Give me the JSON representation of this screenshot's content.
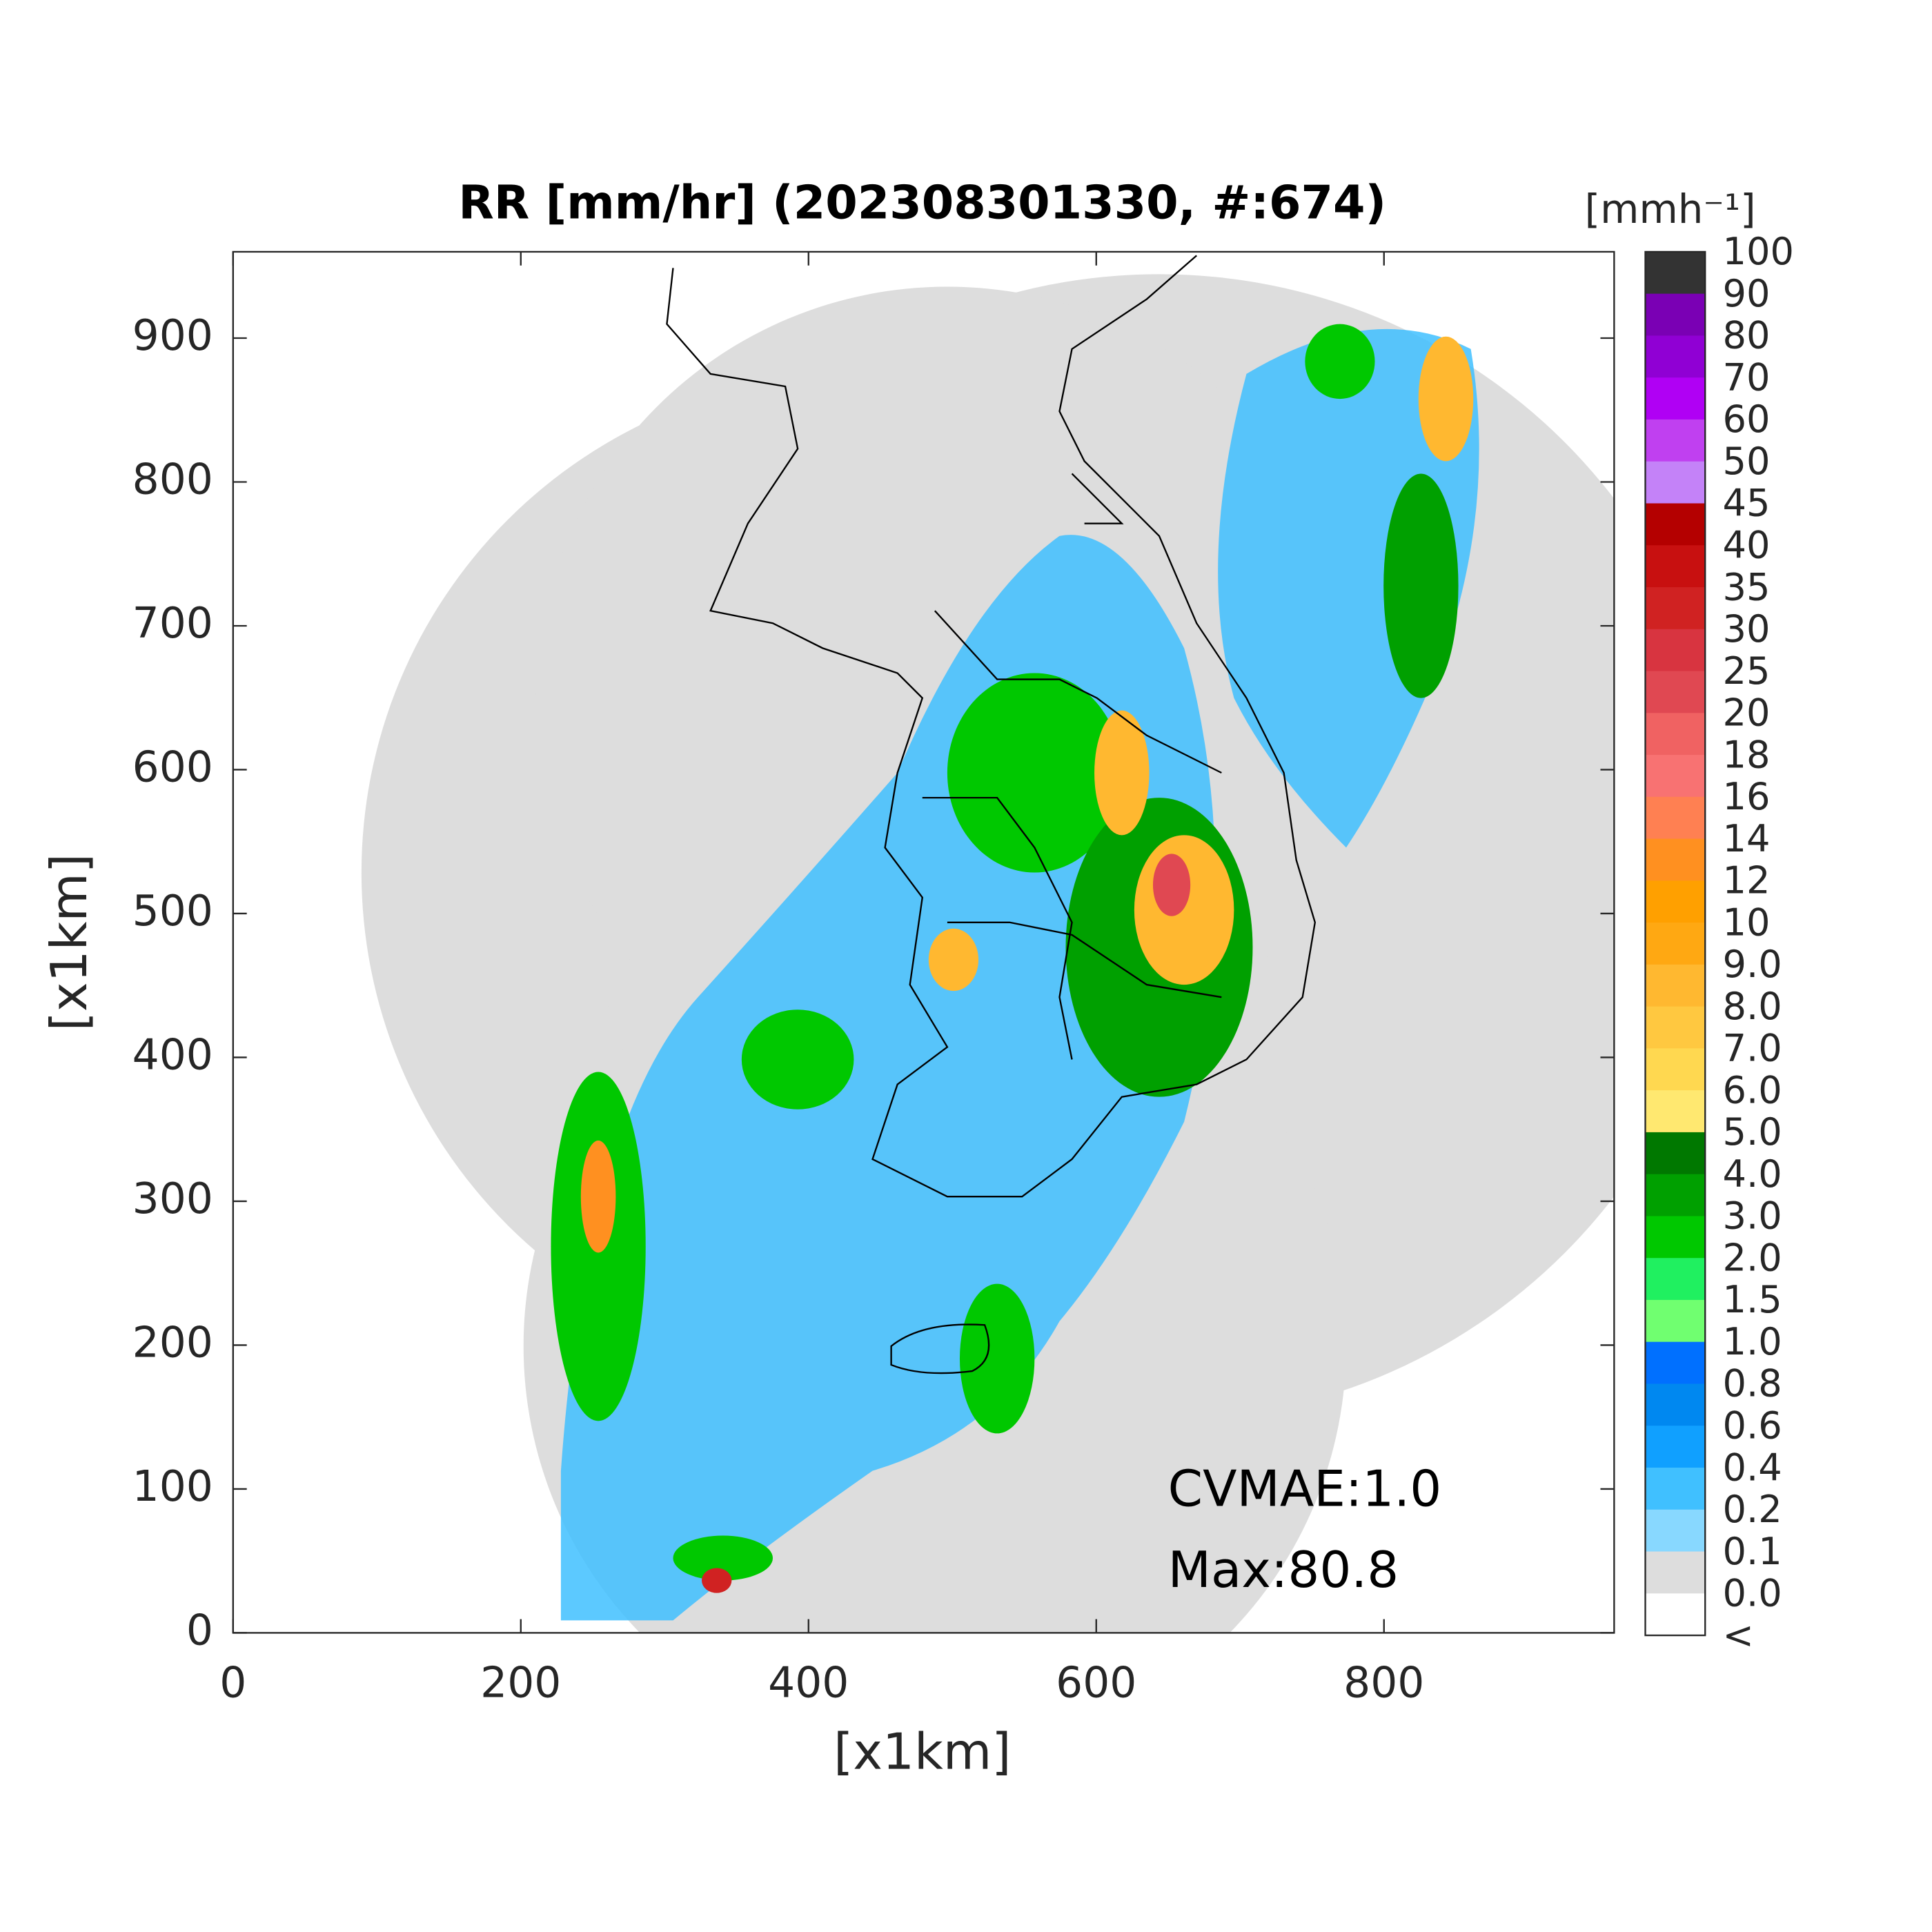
{
  "chart_data": {
    "type": "map",
    "title": "RR [mm/hr] (202308301330, #:674)",
    "x_label": "[x1km]",
    "y_label": "[x1km]",
    "xlim": [
      0,
      960
    ],
    "ylim": [
      0,
      960
    ],
    "xticks": [
      0,
      200,
      400,
      600,
      800
    ],
    "yticks": [
      0,
      100,
      200,
      300,
      400,
      500,
      600,
      700,
      800,
      900
    ],
    "annotations": [
      "CVMAE:1.0",
      "Max:80.8"
    ],
    "colorbar": {
      "title": "[mmh⁻¹]",
      "labels": [
        "100",
        "90",
        "80",
        "70",
        "60",
        "50",
        "45",
        "40",
        "35",
        "30",
        "25",
        "20",
        "18",
        "16",
        "14",
        "12",
        "10",
        "9.0",
        "8.0",
        "7.0",
        "6.0",
        "5.0",
        "4.0",
        "3.0",
        "2.0",
        "1.5",
        "1.0",
        "0.8",
        "0.6",
        "0.4",
        "0.2",
        "0.1",
        "0.0",
        "<"
      ],
      "colors": [
        "#333333",
        "#7a00b4",
        "#9000d4",
        "#b000f4",
        "#c040f0",
        "#c482f8",
        "#b40000",
        "#c81010",
        "#d02222",
        "#d83440",
        "#e04852",
        "#f06262",
        "#f87272",
        "#ff8052",
        "#ff9020",
        "#ffa000",
        "#ffa812",
        "#ffb830",
        "#ffc840",
        "#ffd850",
        "#ffe870",
        "#007800",
        "#00a000",
        "#00c800",
        "#20f060",
        "#70ff70",
        "#0070ff",
        "#0088f0",
        "#10a0ff",
        "#40c0ff",
        "#88d8ff",
        "#dddddd",
        "#ffffff"
      ]
    }
  }
}
